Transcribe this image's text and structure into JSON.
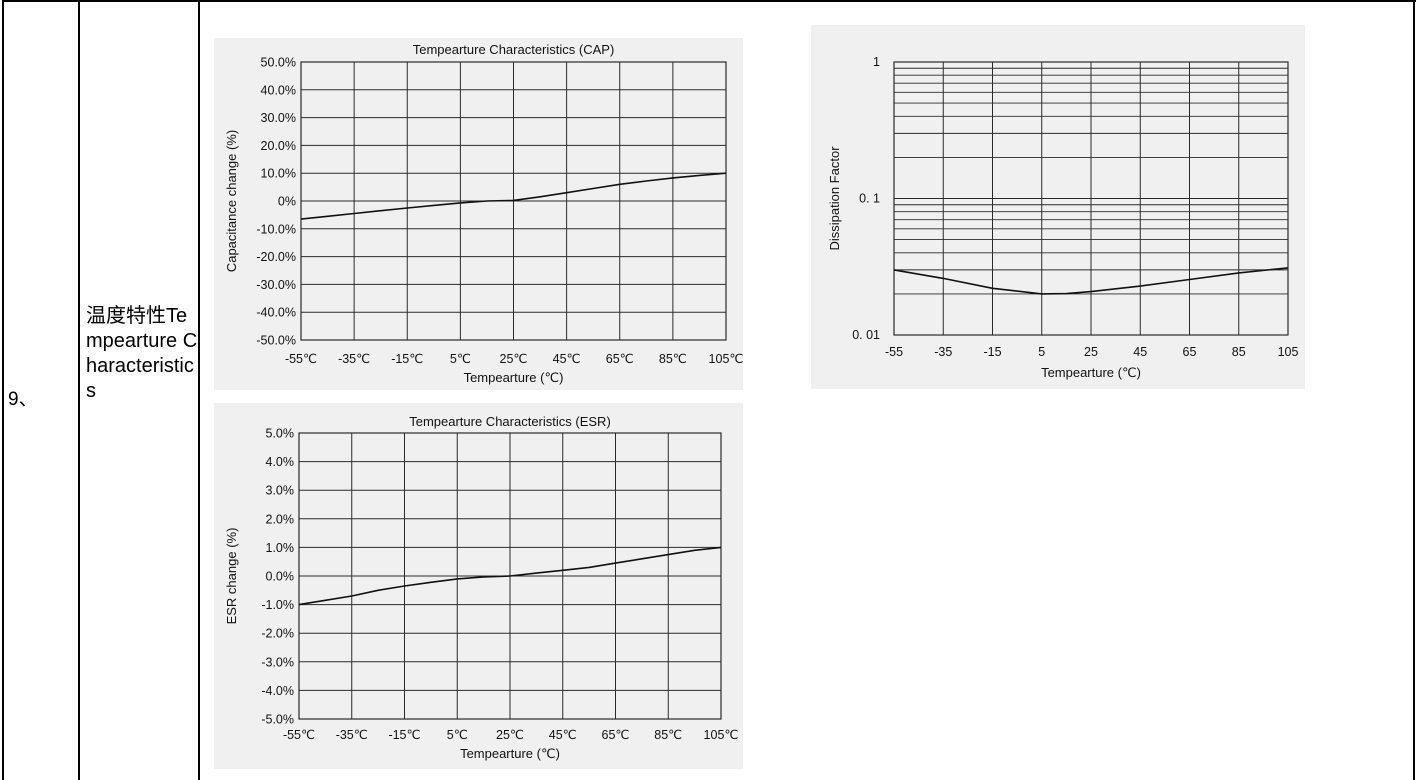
{
  "row": {
    "number": "9、",
    "label_zh": "温度特性",
    "label_en": "Tempearture Characteristics"
  },
  "colors": {
    "grid": "#2a2a2a",
    "curve": "#111111",
    "panel": "#f0f0f0"
  },
  "chart_data": [
    {
      "id": "cap",
      "type": "line",
      "title": "Tempearture Characteristics (CAP)",
      "xlabel": "Tempearture (℃)",
      "ylabel": "Capacitance change (%)",
      "x_ticks": [
        "-55℃",
        "-35℃",
        "-15℃",
        "5℃",
        "25℃",
        "45℃",
        "65℃",
        "85℃",
        "105℃"
      ],
      "y_ticks": [
        "50.0%",
        "40.0%",
        "30.0%",
        "20.0%",
        "10.0%",
        "0%",
        "-10.0%",
        "-20.0%",
        "-30.0%",
        "-40.0%",
        "-50.0%"
      ],
      "xlim": [
        -55,
        105
      ],
      "ylim": [
        -50,
        50
      ],
      "grid": true,
      "x": [
        -55,
        -45,
        -35,
        -25,
        -15,
        -5,
        5,
        15,
        25,
        35,
        45,
        55,
        65,
        75,
        85,
        95,
        105
      ],
      "values": [
        -6.5,
        -5.5,
        -4.5,
        -3.5,
        -2.5,
        -1.6,
        -0.7,
        0,
        0.2,
        1.5,
        3,
        4.5,
        6,
        7.2,
        8.3,
        9.2,
        10
      ]
    },
    {
      "id": "df",
      "type": "line",
      "title": "",
      "xlabel": "Tempearture (℃)",
      "ylabel": "Dissipation Factor",
      "x_ticks": [
        "-55",
        "-35",
        "-15",
        "5",
        "25",
        "45",
        "65",
        "85",
        "105"
      ],
      "y_ticks": [
        "1",
        "0. 1",
        "0. 01"
      ],
      "y_scale": "log",
      "xlim": [
        -55,
        105
      ],
      "ylim": [
        0.01,
        1
      ],
      "grid": true,
      "x": [
        -55,
        -35,
        -15,
        5,
        15,
        25,
        45,
        65,
        85,
        105
      ],
      "values": [
        0.03,
        0.026,
        0.022,
        0.02,
        0.0201,
        0.0208,
        0.0228,
        0.0255,
        0.0285,
        0.031
      ]
    },
    {
      "id": "esr",
      "type": "line",
      "title": "Tempearture Characteristics (ESR)",
      "xlabel": "Tempearture (℃)",
      "ylabel": "ESR change (%)",
      "x_ticks": [
        "-55℃",
        "-35℃",
        "-15℃",
        "5℃",
        "25℃",
        "45℃",
        "65℃",
        "85℃",
        "105℃"
      ],
      "y_ticks": [
        "5.0%",
        "4.0%",
        "3.0%",
        "2.0%",
        "1.0%",
        "0.0%",
        "-1.0%",
        "-2.0%",
        "-3.0%",
        "-4.0%",
        "-5.0%"
      ],
      "xlim": [
        -55,
        105
      ],
      "ylim": [
        -5,
        5
      ],
      "grid": true,
      "x": [
        -55,
        -45,
        -35,
        -25,
        -15,
        -5,
        5,
        15,
        25,
        35,
        45,
        55,
        65,
        75,
        85,
        95,
        105
      ],
      "values": [
        -1,
        -0.85,
        -0.7,
        -0.5,
        -0.35,
        -0.22,
        -0.1,
        -0.03,
        0,
        0.1,
        0.2,
        0.3,
        0.45,
        0.6,
        0.75,
        0.9,
        1
      ]
    }
  ]
}
